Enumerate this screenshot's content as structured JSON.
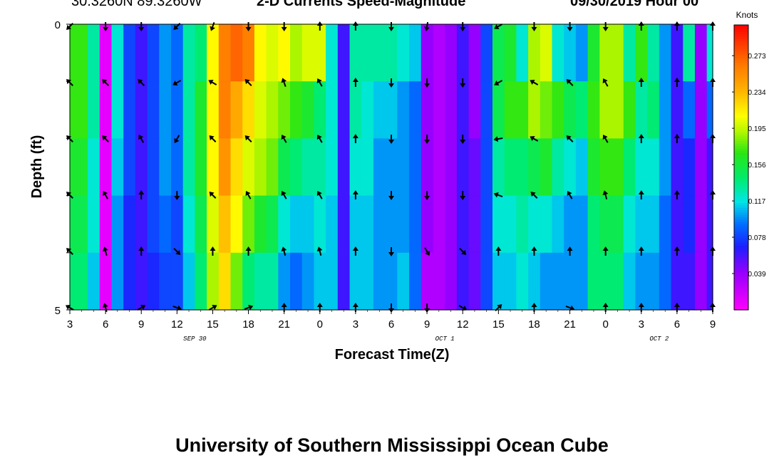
{
  "header": {
    "location": "30.3260N 89.3260W",
    "title": "2-D Currents Speed-Magnitude",
    "forecast": "09/30/2019 Hour 00"
  },
  "footer": {
    "text": "University of Southern Mississippi Ocean Cube"
  },
  "chart_data": {
    "type": "heatmap",
    "title": "2-D Currents Speed-Magnitude",
    "xlabel": "Forecast Time(Z)",
    "ylabel": "Depth (ft)",
    "x_tick_labels": [
      "3",
      "6",
      "9",
      "12",
      "15",
      "18",
      "21",
      "0",
      "3",
      "6",
      "9",
      "12",
      "15",
      "18",
      "21",
      "0",
      "3",
      "6",
      "9"
    ],
    "date_labels": [
      {
        "label": "SEP 30",
        "after_tick": "12"
      },
      {
        "label": "OCT 1",
        "after_tick": "9"
      },
      {
        "label": "OCT 2",
        "after_tick": "3"
      }
    ],
    "y_tick_labels": [
      "0",
      "5"
    ],
    "ylim": [
      0,
      5
    ],
    "x_range_hours": [
      3,
      57
    ],
    "colorbar": {
      "title": "Knots",
      "tick_labels": [
        "0.273",
        "0.234",
        "0.195",
        "0.156",
        "0.117",
        "0.078",
        "0.039"
      ],
      "tick_values": [
        0.273,
        0.234,
        0.195,
        0.156,
        0.117,
        0.078,
        0.039
      ],
      "range": [
        0,
        0.306
      ]
    },
    "depth_rows": 5,
    "column_hours": [
      3,
      4,
      5,
      6,
      7,
      8,
      9,
      10,
      11,
      12,
      13,
      14,
      15,
      16,
      17,
      18,
      19,
      20,
      21,
      22,
      23,
      24,
      25,
      26,
      27,
      28,
      29,
      30,
      31,
      32,
      33,
      34,
      35,
      36,
      37,
      38,
      39,
      40,
      41,
      42,
      43,
      44,
      45,
      46,
      47,
      48,
      49,
      50,
      51,
      52,
      53,
      54,
      55,
      56,
      57
    ],
    "speed_knots": [
      [
        0.17,
        0.17,
        0.13,
        0.01,
        0.12,
        0.08,
        0.06,
        0.08,
        0.1,
        0.09,
        0.13,
        0.14,
        0.21,
        0.26,
        0.27,
        0.26,
        0.21,
        0.2,
        0.21,
        0.19,
        0.2,
        0.2,
        0.12,
        0.06,
        0.13,
        0.13,
        0.13,
        0.13,
        0.12,
        0.11,
        0.04,
        0.03,
        0.04,
        0.06,
        0.04,
        0.08,
        0.15,
        0.16,
        0.12,
        0.19,
        0.2,
        0.12,
        0.11,
        0.1,
        0.16,
        0.19,
        0.19,
        0.13,
        0.17,
        0.13,
        0.1,
        0.06,
        0.13,
        0.04,
        0.12
      ],
      [
        0.17,
        0.17,
        0.13,
        0.01,
        0.12,
        0.08,
        0.06,
        0.08,
        0.1,
        0.09,
        0.13,
        0.16,
        0.21,
        0.26,
        0.24,
        0.22,
        0.2,
        0.19,
        0.18,
        0.17,
        0.16,
        0.14,
        0.12,
        0.06,
        0.13,
        0.12,
        0.11,
        0.11,
        0.1,
        0.09,
        0.04,
        0.03,
        0.04,
        0.06,
        0.04,
        0.08,
        0.15,
        0.17,
        0.17,
        0.19,
        0.18,
        0.17,
        0.15,
        0.14,
        0.17,
        0.19,
        0.19,
        0.17,
        0.13,
        0.14,
        0.1,
        0.06,
        0.09,
        0.04,
        0.09
      ],
      [
        0.16,
        0.16,
        0.12,
        0.01,
        0.11,
        0.08,
        0.06,
        0.08,
        0.1,
        0.09,
        0.13,
        0.16,
        0.21,
        0.25,
        0.22,
        0.2,
        0.19,
        0.18,
        0.15,
        0.14,
        0.13,
        0.13,
        0.12,
        0.06,
        0.12,
        0.12,
        0.1,
        0.1,
        0.1,
        0.09,
        0.04,
        0.03,
        0.04,
        0.06,
        0.05,
        0.08,
        0.13,
        0.14,
        0.14,
        0.15,
        0.16,
        0.13,
        0.12,
        0.11,
        0.16,
        0.17,
        0.17,
        0.14,
        0.12,
        0.12,
        0.1,
        0.06,
        0.07,
        0.04,
        0.06
      ],
      [
        0.15,
        0.15,
        0.12,
        0.01,
        0.1,
        0.07,
        0.06,
        0.08,
        0.09,
        0.08,
        0.12,
        0.15,
        0.2,
        0.23,
        0.21,
        0.18,
        0.16,
        0.15,
        0.12,
        0.11,
        0.11,
        0.12,
        0.11,
        0.06,
        0.11,
        0.11,
        0.1,
        0.1,
        0.1,
        0.09,
        0.04,
        0.03,
        0.04,
        0.06,
        0.05,
        0.08,
        0.12,
        0.12,
        0.13,
        0.12,
        0.12,
        0.11,
        0.1,
        0.1,
        0.14,
        0.15,
        0.15,
        0.12,
        0.11,
        0.11,
        0.09,
        0.06,
        0.07,
        0.04,
        0.06
      ],
      [
        0.14,
        0.14,
        0.11,
        0.01,
        0.1,
        0.07,
        0.06,
        0.07,
        0.08,
        0.08,
        0.11,
        0.14,
        0.19,
        0.22,
        0.18,
        0.14,
        0.13,
        0.13,
        0.1,
        0.09,
        0.1,
        0.11,
        0.11,
        0.06,
        0.11,
        0.11,
        0.1,
        0.1,
        0.11,
        0.09,
        0.03,
        0.03,
        0.04,
        0.06,
        0.05,
        0.08,
        0.11,
        0.11,
        0.12,
        0.11,
        0.1,
        0.1,
        0.1,
        0.1,
        0.14,
        0.14,
        0.14,
        0.11,
        0.1,
        0.1,
        0.09,
        0.06,
        0.06,
        0.04,
        0.06
      ]
    ],
    "arrow_hours": [
      3,
      6,
      9,
      12,
      15,
      18,
      21,
      24,
      27,
      30,
      33,
      36,
      39,
      42,
      45,
      48,
      51,
      54,
      57
    ],
    "arrow_direction_deg": [
      [
        225,
        180,
        180,
        225,
        200,
        180,
        180,
        0,
        0,
        180,
        190,
        180,
        240,
        180,
        180,
        180,
        0,
        0,
        0
      ],
      [
        315,
        315,
        315,
        240,
        300,
        315,
        340,
        330,
        0,
        180,
        180,
        180,
        240,
        300,
        315,
        330,
        0,
        0,
        0
      ],
      [
        315,
        315,
        330,
        210,
        315,
        315,
        330,
        330,
        0,
        180,
        180,
        180,
        260,
        300,
        315,
        330,
        0,
        0,
        0
      ],
      [
        315,
        330,
        0,
        180,
        315,
        330,
        330,
        330,
        0,
        180,
        180,
        180,
        290,
        315,
        330,
        345,
        0,
        0,
        0
      ],
      [
        315,
        345,
        0,
        135,
        0,
        0,
        345,
        345,
        0,
        180,
        150,
        135,
        0,
        0,
        0,
        0,
        0,
        0,
        0
      ],
      [
        300,
        345,
        60,
        110,
        60,
        70,
        0,
        0,
        0,
        180,
        180,
        120,
        45,
        0,
        110,
        0,
        0,
        0,
        0
      ]
    ]
  }
}
